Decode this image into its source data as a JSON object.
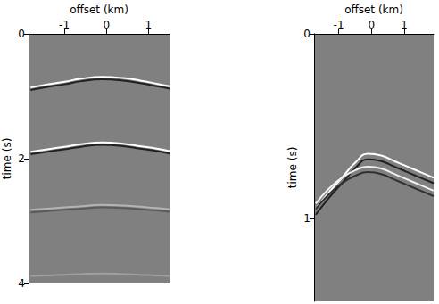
{
  "chart_data": [
    {
      "type": "line",
      "x_label": "offset (km)",
      "y_label": "time (s)",
      "xlim": [
        -1.85,
        1.5
      ],
      "ylim": [
        0,
        4
      ],
      "xticks": [
        -1,
        0,
        1
      ],
      "yticks": [
        0,
        2,
        4
      ],
      "series": [
        {
          "color": "#ffffff",
          "x": [
            -1.8,
            -1.4,
            -1,
            -0.6,
            -0.1,
            0.4,
            0.8,
            1.2,
            1.5
          ],
          "values": [
            0.86,
            0.81,
            0.77,
            0.72,
            0.69,
            0.71,
            0.75,
            0.8,
            0.84
          ]
        },
        {
          "color": "#202020",
          "x": [
            -1.8,
            -1.4,
            -1,
            -0.6,
            -0.1,
            0.4,
            0.8,
            1.2,
            1.5
          ],
          "values": [
            0.9,
            0.85,
            0.81,
            0.76,
            0.73,
            0.75,
            0.79,
            0.84,
            0.88
          ]
        },
        {
          "color": "#ffffff",
          "x": [
            -1.8,
            -1.4,
            -1,
            -0.6,
            -0.1,
            0.4,
            0.8,
            1.2,
            1.5
          ],
          "values": [
            1.89,
            1.85,
            1.81,
            1.77,
            1.74,
            1.76,
            1.8,
            1.84,
            1.88
          ]
        },
        {
          "color": "#202020",
          "x": [
            -1.8,
            -1.4,
            -1,
            -0.6,
            -0.1,
            0.4,
            0.8,
            1.2,
            1.5
          ],
          "values": [
            1.93,
            1.89,
            1.85,
            1.81,
            1.78,
            1.8,
            1.84,
            1.88,
            1.92
          ]
        },
        {
          "color": "#b4b4b4",
          "x": [
            -1.8,
            -1.4,
            -1,
            -0.6,
            -0.1,
            0.4,
            0.8,
            1.2,
            1.5
          ],
          "values": [
            2.82,
            2.8,
            2.78,
            2.76,
            2.74,
            2.75,
            2.77,
            2.79,
            2.81
          ]
        },
        {
          "color": "#5a5a5a",
          "x": [
            -1.8,
            -1.4,
            -1,
            -0.6,
            -0.1,
            0.4,
            0.8,
            1.2,
            1.5
          ],
          "values": [
            2.86,
            2.84,
            2.82,
            2.8,
            2.78,
            2.79,
            2.81,
            2.83,
            2.85
          ]
        },
        {
          "color": "#a0a0a0",
          "x": [
            -1.8,
            -1.4,
            -1,
            -0.6,
            -0.1,
            0.4,
            0.8,
            1.2,
            1.5
          ],
          "values": [
            3.88,
            3.87,
            3.86,
            3.85,
            3.84,
            3.85,
            3.86,
            3.87,
            3.88
          ]
        }
      ]
    },
    {
      "type": "line",
      "x_label": "offset (km)",
      "y_label": "time (s)",
      "xlim": [
        -1.75,
        1.9
      ],
      "ylim": [
        0,
        1.45
      ],
      "xticks": [
        -1,
        0,
        1
      ],
      "yticks": [
        0,
        1
      ],
      "series": [
        {
          "color": "#ffffff",
          "x": [
            -1.7,
            -1.3,
            -0.9,
            -0.5,
            -0.1,
            0.3,
            0.7,
            1.1,
            1.5,
            1.9
          ],
          "values": [
            0.95,
            0.86,
            0.78,
            0.7,
            0.65,
            0.66,
            0.69,
            0.72,
            0.75,
            0.78
          ]
        },
        {
          "color": "#202020",
          "x": [
            -1.7,
            -1.3,
            -0.9,
            -0.5,
            -0.1,
            0.3,
            0.7,
            1.1,
            1.5,
            1.9
          ],
          "values": [
            0.98,
            0.89,
            0.81,
            0.73,
            0.68,
            0.69,
            0.72,
            0.75,
            0.78,
            0.81
          ]
        },
        {
          "color": "#f0f0f0",
          "x": [
            -1.7,
            -1.3,
            -0.9,
            -0.5,
            -0.1,
            0.3,
            0.7,
            1.1,
            1.5,
            1.9
          ],
          "values": [
            0.92,
            0.84,
            0.78,
            0.74,
            0.72,
            0.73,
            0.76,
            0.79,
            0.82,
            0.85
          ]
        },
        {
          "color": "#303030",
          "x": [
            -1.7,
            -1.3,
            -0.9,
            -0.5,
            -0.1,
            0.3,
            0.7,
            1.1,
            1.5,
            1.9
          ],
          "values": [
            0.95,
            0.87,
            0.81,
            0.77,
            0.75,
            0.76,
            0.79,
            0.82,
            0.85,
            0.88
          ]
        }
      ]
    }
  ]
}
